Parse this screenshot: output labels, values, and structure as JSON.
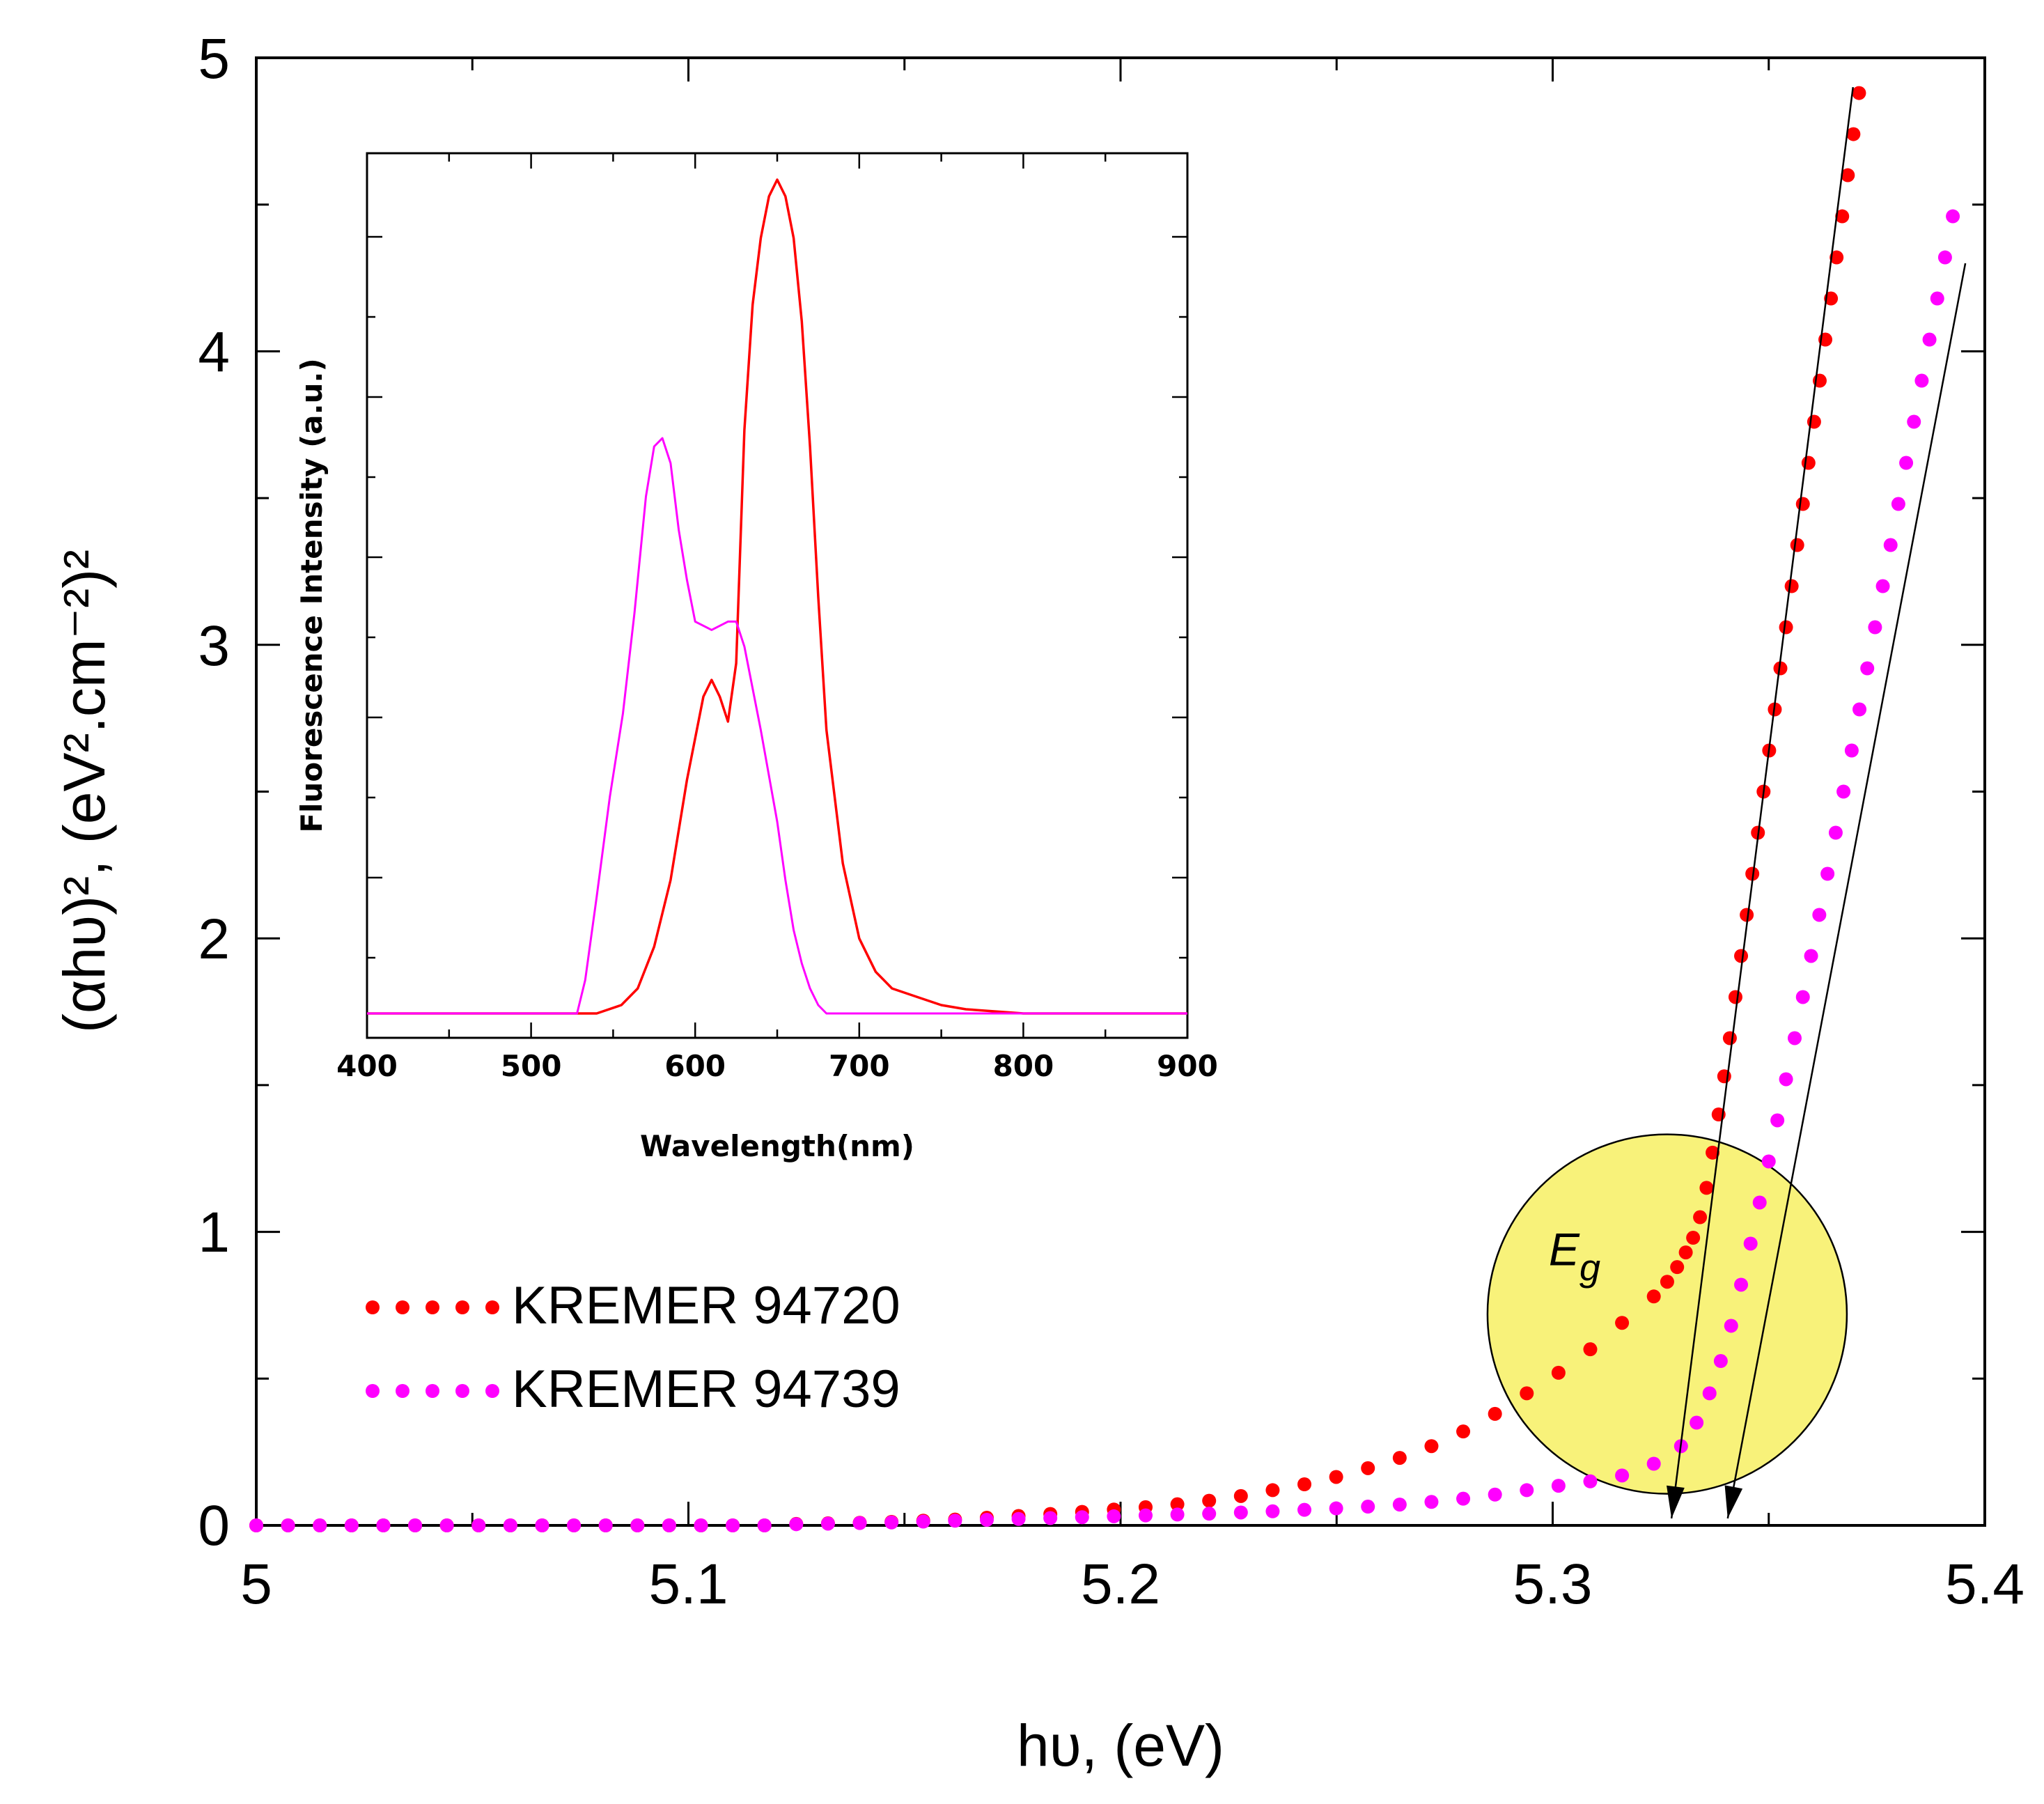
{
  "chart_data": [
    {
      "type": "scatter",
      "title": "",
      "xlabel": "hυ, (eV)",
      "ylabel": "(αhυ)², (eV².cm⁻²)²",
      "xlim": [
        5.0,
        5.4
      ],
      "ylim": [
        0,
        5
      ],
      "xticks": [
        "5",
        "5.1",
        "5.2",
        "5.3",
        "5.4"
      ],
      "yticks": [
        "0",
        "1",
        "2",
        "3",
        "4",
        "5"
      ],
      "grid": false,
      "legend_position": "lower-left",
      "series": [
        {
          "name": "KREMER 94720",
          "color": "#ff0000",
          "x": [
            5.0,
            5.00735,
            5.0147,
            5.02205,
            5.0294,
            5.03675,
            5.0441,
            5.05145,
            5.0588,
            5.06615,
            5.0735,
            5.08085,
            5.0882,
            5.09555,
            5.1029,
            5.11025,
            5.1176,
            5.12495,
            5.1323,
            5.13965,
            5.147,
            5.15435,
            5.1617,
            5.16905,
            5.1764,
            5.18375,
            5.1911,
            5.19845,
            5.2058,
            5.21315,
            5.2205,
            5.22785,
            5.2352,
            5.24255,
            5.2499,
            5.25725,
            5.2646,
            5.27195,
            5.2793,
            5.28665,
            5.294,
            5.30135,
            5.3087,
            5.31605,
            5.3234,
            5.3265,
            5.3288,
            5.3308,
            5.3325,
            5.3341,
            5.3356,
            5.337,
            5.3384,
            5.3397,
            5.341,
            5.3423,
            5.3436,
            5.3449,
            5.3462,
            5.3475,
            5.3488,
            5.3501,
            5.3514,
            5.3527,
            5.354,
            5.3553,
            5.3566,
            5.3579,
            5.3592,
            5.3605,
            5.3618,
            5.3631,
            5.3644,
            5.3657,
            5.367,
            5.3683,
            5.3696,
            5.3709
          ],
          "y": [
            0.0,
            0.0,
            0.0,
            0.0,
            0.0,
            0.0,
            0.0,
            0.0,
            0.0,
            0.0,
            0.0,
            0.0,
            0.0,
            0.0,
            0.0,
            0.0,
            0.0,
            0.005,
            0.007,
            0.009,
            0.012,
            0.016,
            0.02,
            0.026,
            0.032,
            0.039,
            0.046,
            0.054,
            0.062,
            0.072,
            0.084,
            0.1,
            0.12,
            0.14,
            0.165,
            0.195,
            0.23,
            0.27,
            0.32,
            0.38,
            0.45,
            0.52,
            0.6,
            0.69,
            0.78,
            0.83,
            0.88,
            0.93,
            0.98,
            1.05,
            1.15,
            1.27,
            1.4,
            1.53,
            1.66,
            1.8,
            1.94,
            2.08,
            2.22,
            2.36,
            2.5,
            2.64,
            2.78,
            2.92,
            3.06,
            3.2,
            3.34,
            3.48,
            3.62,
            3.76,
            3.9,
            4.04,
            4.18,
            4.32,
            4.46,
            4.6,
            4.74,
            4.88
          ]
        },
        {
          "name": "KREMER 94739",
          "color": "#ff00ff",
          "x": [
            5.0,
            5.00735,
            5.0147,
            5.02205,
            5.0294,
            5.03675,
            5.0441,
            5.05145,
            5.0588,
            5.06615,
            5.0735,
            5.08085,
            5.0882,
            5.09555,
            5.1029,
            5.11025,
            5.1176,
            5.12495,
            5.1323,
            5.13965,
            5.147,
            5.15435,
            5.1617,
            5.16905,
            5.1764,
            5.18375,
            5.1911,
            5.19845,
            5.2058,
            5.21315,
            5.2205,
            5.22785,
            5.2352,
            5.24255,
            5.2499,
            5.25725,
            5.2646,
            5.27195,
            5.2793,
            5.28665,
            5.294,
            5.30135,
            5.3087,
            5.31605,
            5.3234,
            5.3297,
            5.3333,
            5.3363,
            5.3389,
            5.3413,
            5.3436,
            5.3458,
            5.3479,
            5.35,
            5.352,
            5.354,
            5.356,
            5.3579,
            5.3598,
            5.3617,
            5.3636,
            5.3655,
            5.3673,
            5.3692,
            5.371,
            5.3728,
            5.3746,
            5.3764,
            5.3782,
            5.38,
            5.3818,
            5.3836,
            5.3854,
            5.3872,
            5.389,
            5.3908,
            5.3926
          ],
          "y": [
            0.0,
            0.0,
            0.0,
            0.0,
            0.0,
            0.0,
            0.0,
            0.0,
            0.0,
            0.0,
            0.0,
            0.0,
            0.0,
            0.0,
            0.0,
            0.0,
            0.0,
            0.004,
            0.006,
            0.008,
            0.01,
            0.013,
            0.016,
            0.019,
            0.022,
            0.025,
            0.028,
            0.031,
            0.034,
            0.037,
            0.04,
            0.044,
            0.048,
            0.053,
            0.058,
            0.064,
            0.071,
            0.08,
            0.091,
            0.105,
            0.12,
            0.135,
            0.15,
            0.17,
            0.21,
            0.27,
            0.35,
            0.45,
            0.56,
            0.68,
            0.82,
            0.96,
            1.1,
            1.24,
            1.38,
            1.52,
            1.66,
            1.8,
            1.94,
            2.08,
            2.22,
            2.36,
            2.5,
            2.64,
            2.78,
            2.92,
            3.06,
            3.2,
            3.34,
            3.48,
            3.62,
            3.76,
            3.9,
            4.04,
            4.18,
            4.32,
            4.46
          ]
        }
      ],
      "tangent_lines": [
        {
          "x_intercept": 5.3275,
          "x_top": 5.3695,
          "y_top": 4.9
        },
        {
          "x_intercept": 5.3405,
          "x_top": 5.3955,
          "y_top": 4.3
        }
      ],
      "annotation": {
        "label": "E",
        "subscript": "g",
        "center": [
          5.3265,
          0.72
        ],
        "color": "#f8f27a"
      }
    },
    {
      "type": "line",
      "title": "",
      "xlabel": "Wavelength(nm)",
      "ylabel": "Fluorescence Intensity (a.u.)",
      "xlim": [
        400,
        900
      ],
      "ylim": [
        0,
        100
      ],
      "xticks": [
        "400",
        "500",
        "600",
        "700",
        "800",
        "900"
      ],
      "yticks": [],
      "grid": false,
      "series": [
        {
          "name": "KREMER 94720",
          "color": "#ff0000",
          "x": [
            400,
            540,
            555,
            565,
            575,
            585,
            595,
            605,
            610,
            615,
            620,
            625,
            630,
            635,
            640,
            645,
            650,
            655,
            660,
            665,
            670,
            675,
            680,
            690,
            700,
            710,
            720,
            735,
            750,
            765,
            800,
            900
          ],
          "y": [
            0,
            0,
            1,
            3,
            8,
            16,
            28,
            38,
            40,
            38,
            35,
            42,
            70,
            85,
            93,
            98,
            100,
            98,
            93,
            83,
            68,
            50,
            34,
            18,
            9,
            5,
            3,
            2,
            1,
            0.5,
            0,
            0
          ]
        },
        {
          "name": "KREMER 94739",
          "color": "#ff00ff",
          "x": [
            400,
            528,
            533,
            540,
            548,
            556,
            563,
            570,
            575,
            580,
            585,
            590,
            595,
            600,
            610,
            620,
            625,
            630,
            640,
            650,
            655,
            660,
            665,
            670,
            675,
            680,
            900
          ],
          "y": [
            0,
            0,
            4,
            14,
            26,
            36,
            48,
            62,
            68,
            69,
            66,
            58,
            52,
            47,
            46,
            47,
            47,
            44,
            34,
            23,
            16,
            10,
            6,
            3,
            1,
            0,
            0
          ]
        }
      ]
    }
  ]
}
